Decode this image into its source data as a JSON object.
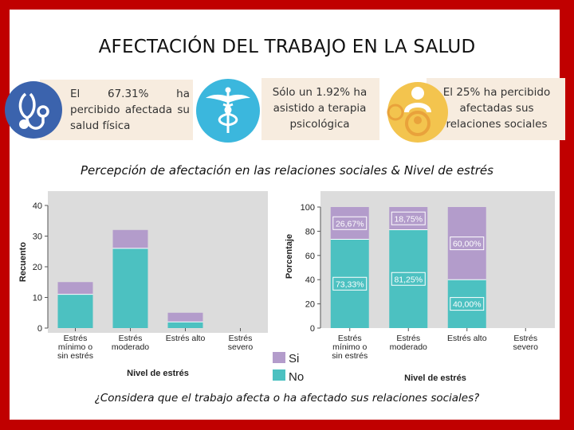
{
  "slide_title": "AFECTACIÓN DEL TRABAJO EN LA SALUD",
  "cards": [
    {
      "text": "El 67.31% ha percibido afectada su salud física",
      "icon": "stethoscope-icon"
    },
    {
      "text": "Sólo un 1.92% ha asistido a terapia psicológica",
      "icon": "caduceus-icon"
    },
    {
      "text": "El 25% ha percibido afectadas sus relaciones sociales",
      "icon": "people-icon"
    }
  ],
  "subtitle": "Percepción de afectación en las relaciones sociales & Nivel de estrés",
  "question": "¿Considera que el trabajo afecta o ha afectado sus relaciones sociales?",
  "colors": {
    "si": "#b39ccb",
    "no": "#4cc1c1",
    "plot_bg": "#dcdcdc",
    "accent_red": "#c00000"
  },
  "chart_data": [
    {
      "type": "bar",
      "stacked": true,
      "categories": [
        "Estrés mínimo o sin estrés",
        "Estrés moderado",
        "Estrés alto",
        "Estrés severo"
      ],
      "category_lines": [
        [
          "Estrés",
          "mínimo o",
          "sin estrés"
        ],
        [
          "Estrés",
          "moderado"
        ],
        [
          "Estrés alto"
        ],
        [
          "Estrés",
          "severo"
        ]
      ],
      "series": [
        {
          "name": "No",
          "values": [
            11,
            26,
            2,
            0
          ]
        },
        {
          "name": "Si",
          "values": [
            4,
            6,
            3,
            0
          ]
        }
      ],
      "ylabel": "Recuento",
      "xlabel": "Nivel de estrés",
      "ylim": [
        0,
        40
      ],
      "yticks": [
        0,
        10,
        20,
        30,
        40
      ]
    },
    {
      "type": "bar",
      "stacked": true,
      "percent": true,
      "categories": [
        "Estrés mínimo o sin estrés",
        "Estrés moderado",
        "Estrés alto",
        "Estrés severo"
      ],
      "category_lines": [
        [
          "Estrés",
          "mínimo o",
          "sin estrés"
        ],
        [
          "Estrés",
          "moderado"
        ],
        [
          "Estrés alto"
        ],
        [
          "Estrés",
          "severo"
        ]
      ],
      "series": [
        {
          "name": "No",
          "values": [
            73.33,
            81.25,
            40.0,
            0
          ],
          "labels": [
            "73,33%",
            "81,25%",
            "40,00%",
            ""
          ]
        },
        {
          "name": "Si",
          "values": [
            26.67,
            18.75,
            60.0,
            0
          ],
          "labels": [
            "26,67%",
            "18,75%",
            "60,00%",
            ""
          ]
        }
      ],
      "ylabel": "Porcentaje",
      "xlabel": "Nivel de estrés",
      "ylim": [
        0,
        100
      ],
      "yticks": [
        0,
        20,
        40,
        60,
        80,
        100
      ]
    }
  ],
  "legend": [
    {
      "name": "Si",
      "color": "#b39ccb"
    },
    {
      "name": "No",
      "color": "#4cc1c1"
    }
  ]
}
